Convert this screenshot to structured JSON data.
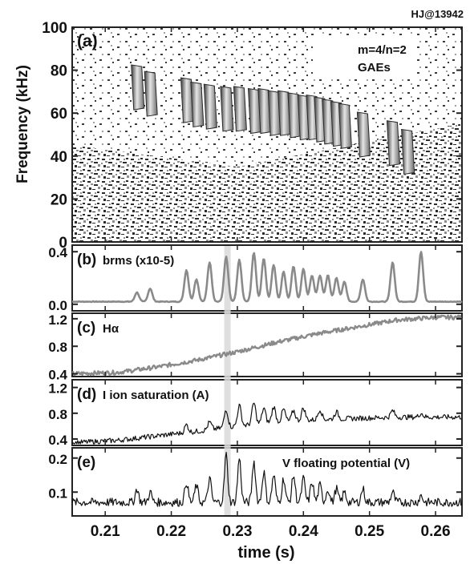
{
  "header": {
    "shot_label": "HJ@13942"
  },
  "colors": {
    "axis": "#222222",
    "gray_trace": "#8a8a8a",
    "black_trace": "#111111",
    "highlight": "#d9d9d9"
  },
  "x_axis": {
    "label": "time (s)",
    "ticks": [
      "0.21",
      "0.22",
      "0.23",
      "0.24",
      "0.25",
      "0.26"
    ],
    "range": [
      0.205,
      0.264
    ]
  },
  "highlight_time": 0.2285,
  "chart_data": [
    {
      "panel": "(a)",
      "type": "heatmap",
      "ylabel": "Frequency (kHz)",
      "annotation_line1": "m=4/n=2",
      "annotation_line2": "GAEs",
      "yticks": [
        "0",
        "20",
        "40",
        "60",
        "80",
        "100"
      ],
      "ylim": [
        0,
        100
      ],
      "bursts": [
        {
          "t": 0.2148,
          "f": 72
        },
        {
          "t": 0.2168,
          "f": 69
        },
        {
          "t": 0.2223,
          "f": 66
        },
        {
          "t": 0.2238,
          "f": 64
        },
        {
          "t": 0.2258,
          "f": 63
        },
        {
          "t": 0.2283,
          "f": 62
        },
        {
          "t": 0.2303,
          "f": 62
        },
        {
          "t": 0.2325,
          "f": 61
        },
        {
          "t": 0.234,
          "f": 61
        },
        {
          "t": 0.2355,
          "f": 60
        },
        {
          "t": 0.237,
          "f": 60
        },
        {
          "t": 0.2385,
          "f": 59
        },
        {
          "t": 0.24,
          "f": 58
        },
        {
          "t": 0.2413,
          "f": 58
        },
        {
          "t": 0.2425,
          "f": 57
        },
        {
          "t": 0.2437,
          "f": 56
        },
        {
          "t": 0.245,
          "f": 55
        },
        {
          "t": 0.2462,
          "f": 54
        },
        {
          "t": 0.249,
          "f": 50
        },
        {
          "t": 0.2535,
          "f": 46
        },
        {
          "t": 0.2557,
          "f": 42
        }
      ]
    },
    {
      "panel": "(b)",
      "type": "line",
      "label": "brms (x10-5)",
      "yticks": [
        "0.0",
        "0.4"
      ],
      "ylim": [
        -0.05,
        0.45
      ],
      "baseline": 0.02,
      "peaks": [
        {
          "t": 0.2148,
          "v": 0.07
        },
        {
          "t": 0.2168,
          "v": 0.1
        },
        {
          "t": 0.2223,
          "v": 0.24
        },
        {
          "t": 0.2238,
          "v": 0.17
        },
        {
          "t": 0.2258,
          "v": 0.3
        },
        {
          "t": 0.2283,
          "v": 0.34
        },
        {
          "t": 0.2303,
          "v": 0.32
        },
        {
          "t": 0.2325,
          "v": 0.37
        },
        {
          "t": 0.234,
          "v": 0.33
        },
        {
          "t": 0.2355,
          "v": 0.28
        },
        {
          "t": 0.237,
          "v": 0.23
        },
        {
          "t": 0.2385,
          "v": 0.27
        },
        {
          "t": 0.24,
          "v": 0.25
        },
        {
          "t": 0.2413,
          "v": 0.2
        },
        {
          "t": 0.2425,
          "v": 0.2
        },
        {
          "t": 0.2437,
          "v": 0.2
        },
        {
          "t": 0.245,
          "v": 0.18
        },
        {
          "t": 0.2462,
          "v": 0.15
        },
        {
          "t": 0.249,
          "v": 0.17
        },
        {
          "t": 0.2535,
          "v": 0.3
        },
        {
          "t": 0.2578,
          "v": 0.38
        }
      ]
    },
    {
      "panel": "(c)",
      "type": "line",
      "label": "Hα",
      "yticks": [
        "0.4",
        "0.8",
        "1.2"
      ],
      "ylim": [
        0.36,
        1.28
      ],
      "points": [
        [
          0.205,
          0.4
        ],
        [
          0.212,
          0.42
        ],
        [
          0.218,
          0.5
        ],
        [
          0.224,
          0.6
        ],
        [
          0.23,
          0.72
        ],
        [
          0.236,
          0.86
        ],
        [
          0.242,
          0.98
        ],
        [
          0.248,
          1.08
        ],
        [
          0.254,
          1.18
        ],
        [
          0.26,
          1.22
        ],
        [
          0.264,
          1.22
        ]
      ]
    },
    {
      "panel": "(d)",
      "type": "line",
      "label": "I ion saturation (A)",
      "yticks": [
        "0.4",
        "0.8",
        "1.2"
      ],
      "ylim": [
        0.3,
        1.32
      ],
      "points": [
        [
          0.205,
          0.34
        ],
        [
          0.212,
          0.38
        ],
        [
          0.218,
          0.45
        ],
        [
          0.224,
          0.52
        ],
        [
          0.23,
          0.6
        ],
        [
          0.236,
          0.66
        ],
        [
          0.242,
          0.7
        ],
        [
          0.248,
          0.72
        ],
        [
          0.254,
          0.74
        ],
        [
          0.26,
          0.74
        ],
        [
          0.264,
          0.74
        ]
      ],
      "peaks": [
        {
          "t": 0.2223,
          "v": 0.62
        },
        {
          "t": 0.2258,
          "v": 0.66
        },
        {
          "t": 0.2283,
          "v": 0.86
        },
        {
          "t": 0.2303,
          "v": 0.92
        },
        {
          "t": 0.2325,
          "v": 0.96
        },
        {
          "t": 0.234,
          "v": 0.88
        },
        {
          "t": 0.2355,
          "v": 0.9
        },
        {
          "t": 0.237,
          "v": 0.86
        },
        {
          "t": 0.2385,
          "v": 0.84
        },
        {
          "t": 0.24,
          "v": 0.88
        },
        {
          "t": 0.2425,
          "v": 0.86
        },
        {
          "t": 0.245,
          "v": 0.82
        },
        {
          "t": 0.2535,
          "v": 0.84
        },
        {
          "t": 0.2578,
          "v": 0.8
        }
      ]
    },
    {
      "panel": "(e)",
      "type": "line",
      "label": "V floating potential (V)",
      "yticks": [
        "0.1",
        "0.2"
      ],
      "ylim": [
        0.03,
        0.23
      ],
      "baseline": 0.07,
      "peaks": [
        {
          "t": 0.2148,
          "v": 0.11
        },
        {
          "t": 0.2168,
          "v": 0.1
        },
        {
          "t": 0.2223,
          "v": 0.13
        },
        {
          "t": 0.2238,
          "v": 0.12
        },
        {
          "t": 0.2258,
          "v": 0.14
        },
        {
          "t": 0.2283,
          "v": 0.21
        },
        {
          "t": 0.2303,
          "v": 0.2
        },
        {
          "t": 0.2325,
          "v": 0.19
        },
        {
          "t": 0.234,
          "v": 0.16
        },
        {
          "t": 0.2355,
          "v": 0.15
        },
        {
          "t": 0.237,
          "v": 0.14
        },
        {
          "t": 0.2385,
          "v": 0.15
        },
        {
          "t": 0.24,
          "v": 0.14
        },
        {
          "t": 0.2413,
          "v": 0.13
        },
        {
          "t": 0.2425,
          "v": 0.12
        },
        {
          "t": 0.2437,
          "v": 0.11
        },
        {
          "t": 0.245,
          "v": 0.11
        },
        {
          "t": 0.2462,
          "v": 0.1
        },
        {
          "t": 0.249,
          "v": 0.11
        },
        {
          "t": 0.2535,
          "v": 0.1
        },
        {
          "t": 0.2578,
          "v": 0.09
        }
      ]
    }
  ]
}
